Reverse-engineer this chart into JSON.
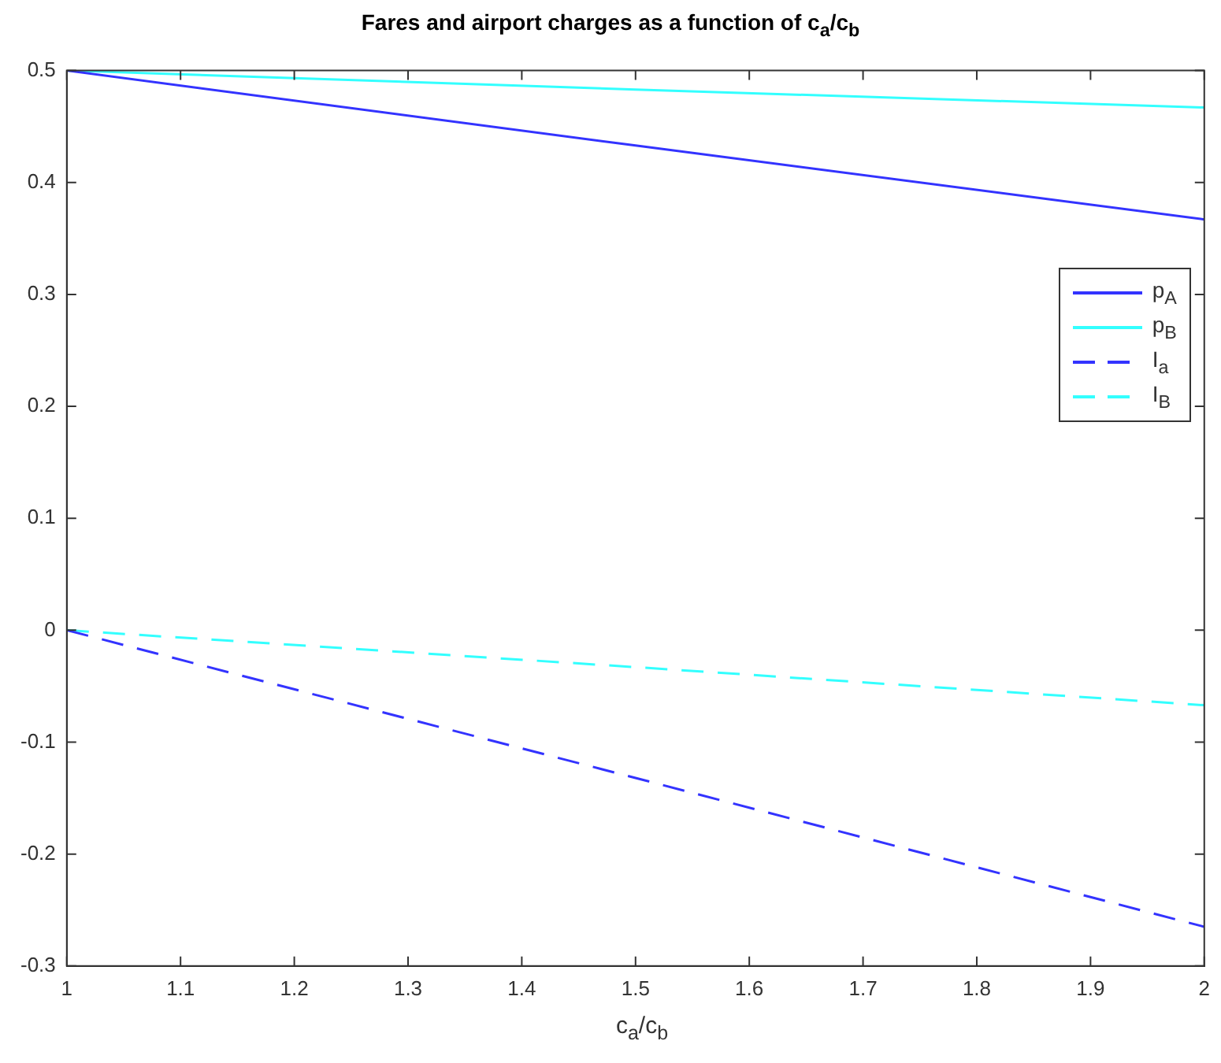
{
  "chart_data": {
    "type": "line",
    "title": "Fares and airport charges as a function of c$_{a}$/c$_{b}$",
    "xlabel": "c$_{a}$/c$_{b}$",
    "x": [
      1,
      1.5,
      2
    ],
    "series": [
      {
        "name": "p$_{A}$",
        "color": "#3333ff",
        "values": [
          0.5,
          0.433,
          0.367
        ],
        "line_style": "solid"
      },
      {
        "name": "p$_{B}$",
        "color": "#33ffff",
        "values": [
          0.5,
          0.483,
          0.467
        ],
        "line_style": "solid"
      },
      {
        "name": "I$_{a}$",
        "color": "#3333ff",
        "values": [
          0,
          -0.132,
          -0.265
        ],
        "line_style": "dashed"
      },
      {
        "name": "I$_{B}$",
        "color": "#33ffff",
        "values": [
          0,
          -0.033,
          -0.067
        ],
        "line_style": "dashed"
      }
    ],
    "xlim": [
      1,
      2
    ],
    "xticks": [
      1,
      1.1,
      1.2,
      1.3,
      1.4,
      1.5,
      1.6,
      1.7,
      1.8,
      1.9,
      2
    ],
    "ylim": [
      -0.3,
      0.5
    ],
    "yticks": [
      -0.3,
      -0.2,
      -0.1,
      0,
      0.1,
      0.2,
      0.3,
      0.4,
      0.5
    ],
    "grid": false,
    "legend": "top right",
    "marker": "none"
  }
}
